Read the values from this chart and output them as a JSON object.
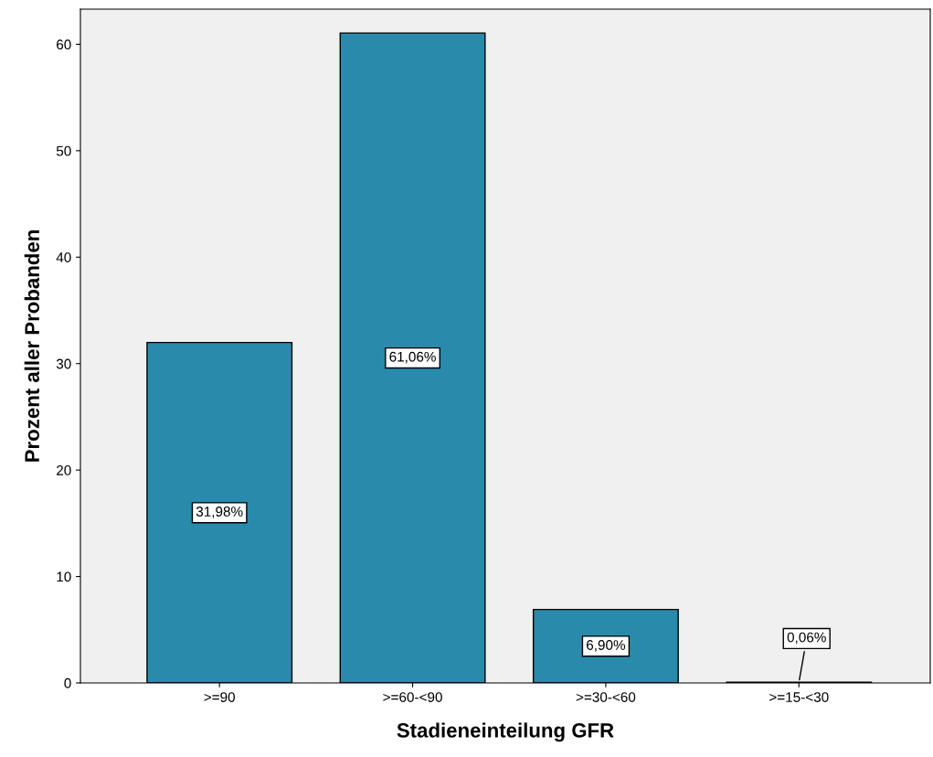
{
  "chart_data": {
    "type": "bar",
    "xlabel": "Stadieneinteilung GFR",
    "ylabel": "Prozent aller Probanden",
    "categories": [
      ">=90",
      ">=60-<90",
      ">=30-<60",
      ">=15-<30"
    ],
    "values": [
      31.98,
      61.06,
      6.9,
      0.06
    ],
    "value_labels": [
      "31,98%",
      "61,06%",
      "6,90%",
      "0,06%"
    ],
    "color": "#2a8aab",
    "ylim": [
      0,
      63.3
    ],
    "yticks": [
      0,
      10,
      20,
      30,
      40,
      50,
      60
    ],
    "grid": false,
    "legend": false
  }
}
